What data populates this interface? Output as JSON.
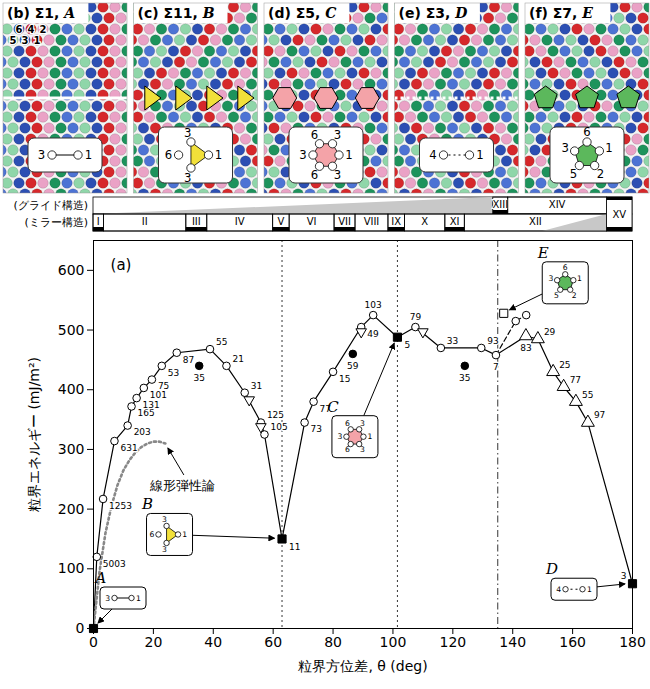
{
  "chart_data": {
    "type": "line",
    "panel_label": "(a)",
    "x_label": "粒界方位差, θ (deg)",
    "y_label": "粒界エネルギー (mJ/m²)",
    "xlim": [
      0,
      180
    ],
    "xticks": [
      0,
      20,
      40,
      60,
      80,
      100,
      120,
      140,
      160,
      180
    ],
    "ylim": [
      0,
      650
    ],
    "yticks": [
      0,
      100,
      200,
      300,
      400,
      500,
      600
    ],
    "grid": false,
    "series": [
      {
        "type": "line",
        "line_style": "solid",
        "marker": "none",
        "color": "#000000",
        "x": [
          0,
          1.1,
          3.2,
          7.0,
          11.4,
          12.7,
          14.4,
          16.8,
          19.5,
          22.8,
          27.8,
          38.9,
          44.4,
          50.5,
          55.9,
          57.1,
          62.96,
          70.5,
          73.5,
          80.0,
          89.4,
          93.4,
          101.5,
          107.5,
          116.0,
          129.5,
          134.4,
          144.4,
          148.4,
          153.5,
          157.0,
          161.1,
          165.1,
          180
        ],
        "values": [
          0,
          120,
          217,
          314,
          340,
          372,
          386,
          403,
          417,
          440,
          462,
          468,
          440,
          395,
          345,
          325,
          150,
          345,
          380,
          430,
          505,
          525,
          488,
          505,
          470,
          470,
          458,
          490,
          485,
          430,
          405,
          380,
          345,
          75
        ]
      },
      {
        "type": "line",
        "line_style": "dashed",
        "marker": "none",
        "color": "#000000",
        "x": [
          134.4,
          141.0,
          144.5
        ],
        "values": [
          458,
          515,
          525
        ]
      },
      {
        "type": "line",
        "line_style": "dotted",
        "marker": "none",
        "color": "#888888",
        "label": "線形弾性論",
        "x": [
          0,
          2,
          4,
          6,
          8,
          10,
          12,
          14,
          16,
          18,
          20,
          22,
          24
        ],
        "values": [
          0,
          95,
          160,
          205,
          240,
          265,
          282,
          295,
          304,
          310,
          313,
          313,
          310
        ]
      },
      {
        "type": "scatter",
        "marker": "open-circle",
        "color": "#000000",
        "x": [
          1.1,
          3.2,
          7.0,
          11.4,
          12.7,
          14.4,
          16.8,
          19.5,
          22.8,
          27.8,
          38.9,
          44.4,
          50.5,
          55.9,
          57.1,
          70.5,
          73.5,
          80.0,
          89.4,
          93.4,
          107.5,
          116.0,
          129.5,
          134.4,
          141.0,
          144.5
        ],
        "values": [
          120,
          217,
          314,
          340,
          372,
          386,
          403,
          417,
          440,
          462,
          468,
          440,
          395,
          345,
          325,
          345,
          380,
          430,
          505,
          525,
          505,
          470,
          470,
          458,
          515,
          525
        ],
        "labels": [
          "5003",
          "1253",
          "631",
          "203",
          "165",
          "131",
          "101",
          "75",
          "53",
          "87",
          "55",
          "21",
          "31",
          "125",
          "105",
          "73",
          "77",
          "15",
          "49",
          "103",
          "79",
          "33",
          "93",
          "7",
          null,
          null
        ]
      },
      {
        "type": "scatter",
        "marker": "filled-circle",
        "color": "#000000",
        "x": [
          35.3,
          86.6,
          124.0
        ],
        "values": [
          440,
          460,
          440
        ],
        "labels": [
          "35",
          "59",
          "35"
        ]
      },
      {
        "type": "scatter",
        "marker": "open-triangle-down",
        "color": "#000000",
        "x": [
          52.0,
          55.9,
          89.4,
          110.0
        ],
        "values": [
          383,
          338,
          497,
          497
        ]
      },
      {
        "type": "scatter",
        "marker": "open-triangle",
        "color": "#000000",
        "x": [
          144.4,
          148.4,
          153.5,
          157.0,
          161.1,
          165.1
        ],
        "values": [
          490,
          485,
          430,
          405,
          380,
          345
        ],
        "labels": [
          "83",
          "29",
          "25",
          "77",
          "55",
          "97"
        ]
      },
      {
        "type": "scatter",
        "marker": "filled-square",
        "color": "#000000",
        "x": [
          0,
          62.96,
          101.5,
          180
        ],
        "values": [
          0,
          150,
          488,
          75
        ],
        "labels": [
          null,
          "11",
          "5",
          "3"
        ],
        "letters": [
          "A",
          "B",
          "C",
          "D"
        ]
      },
      {
        "type": "scatter",
        "marker": "open-square",
        "color": "#000000",
        "x": [
          137.0
        ],
        "values": [
          528
        ],
        "labels": [
          null
        ],
        "letters": [
          "E"
        ]
      }
    ],
    "vlines": [
      {
        "x": 62.96,
        "line_style": "dotted"
      },
      {
        "x": 101.5,
        "line_style": "dotted"
      },
      {
        "x": 135.0,
        "line_style": "dashdot"
      }
    ],
    "structures": [
      {
        "heading": "(b) Σ1,",
        "letter": "A",
        "line_style": "solid",
        "nodes": [
          "3",
          "1"
        ],
        "atom_labels": [
          "6",
          "4",
          "2",
          "5",
          "3",
          "1"
        ]
      },
      {
        "heading": "(c) Σ11,",
        "letter": "B",
        "color": "#f2e03a",
        "nodes": [
          "6",
          "3",
          "1",
          "3"
        ]
      },
      {
        "heading": "(d) Σ5,",
        "letter": "C",
        "color": "#f4a3a8",
        "nodes": [
          "6",
          "3",
          "1",
          "3",
          "6",
          "3"
        ]
      },
      {
        "heading": "(e) Σ3,",
        "letter": "D",
        "line_style": "dotted",
        "nodes": [
          "4",
          "1"
        ]
      },
      {
        "heading": "(f) Σ7,",
        "letter": "E",
        "color": "#5cb85c",
        "nodes": [
          "6",
          "1",
          "2",
          "5",
          "3"
        ]
      }
    ],
    "structure_bar": {
      "rows": [
        {
          "label": "(グライド構造)",
          "shade": [
            0,
            133.5
          ],
          "regions": [
            {
              "label": "XIII",
              "from": 133.5,
              "to": 138.5,
              "bold": true
            },
            {
              "label": "XIV",
              "from": 138.5,
              "to": 171.5,
              "bold": false
            }
          ]
        },
        {
          "label": "(ミラー構造)",
          "shade": [
            150,
            171.5
          ],
          "regions": [
            {
              "label": "I",
              "from": 0,
              "to": 3.5,
              "bold": true
            },
            {
              "label": "II",
              "from": 3.5,
              "to": 31,
              "bold": false
            },
            {
              "label": "III",
              "from": 31,
              "to": 38,
              "bold": true
            },
            {
              "label": "IV",
              "from": 38,
              "to": 60,
              "bold": false
            },
            {
              "label": "V",
              "from": 60,
              "to": 65.5,
              "bold": true
            },
            {
              "label": "VI",
              "from": 65.5,
              "to": 80.5,
              "bold": false
            },
            {
              "label": "VII",
              "from": 80.5,
              "to": 87.5,
              "bold": true
            },
            {
              "label": "VIII",
              "from": 87.5,
              "to": 98.5,
              "bold": false
            },
            {
              "label": "IX",
              "from": 98.5,
              "to": 104,
              "bold": true
            },
            {
              "label": "X",
              "from": 104,
              "to": 117.5,
              "bold": false
            },
            {
              "label": "XI",
              "from": 117.5,
              "to": 124,
              "bold": true
            },
            {
              "label": "XII",
              "from": 124,
              "to": 171.5,
              "bold": false
            }
          ]
        }
      ],
      "spanning": [
        {
          "label": "XV",
          "from": 171.5,
          "to": 180,
          "bold": true
        }
      ]
    }
  }
}
